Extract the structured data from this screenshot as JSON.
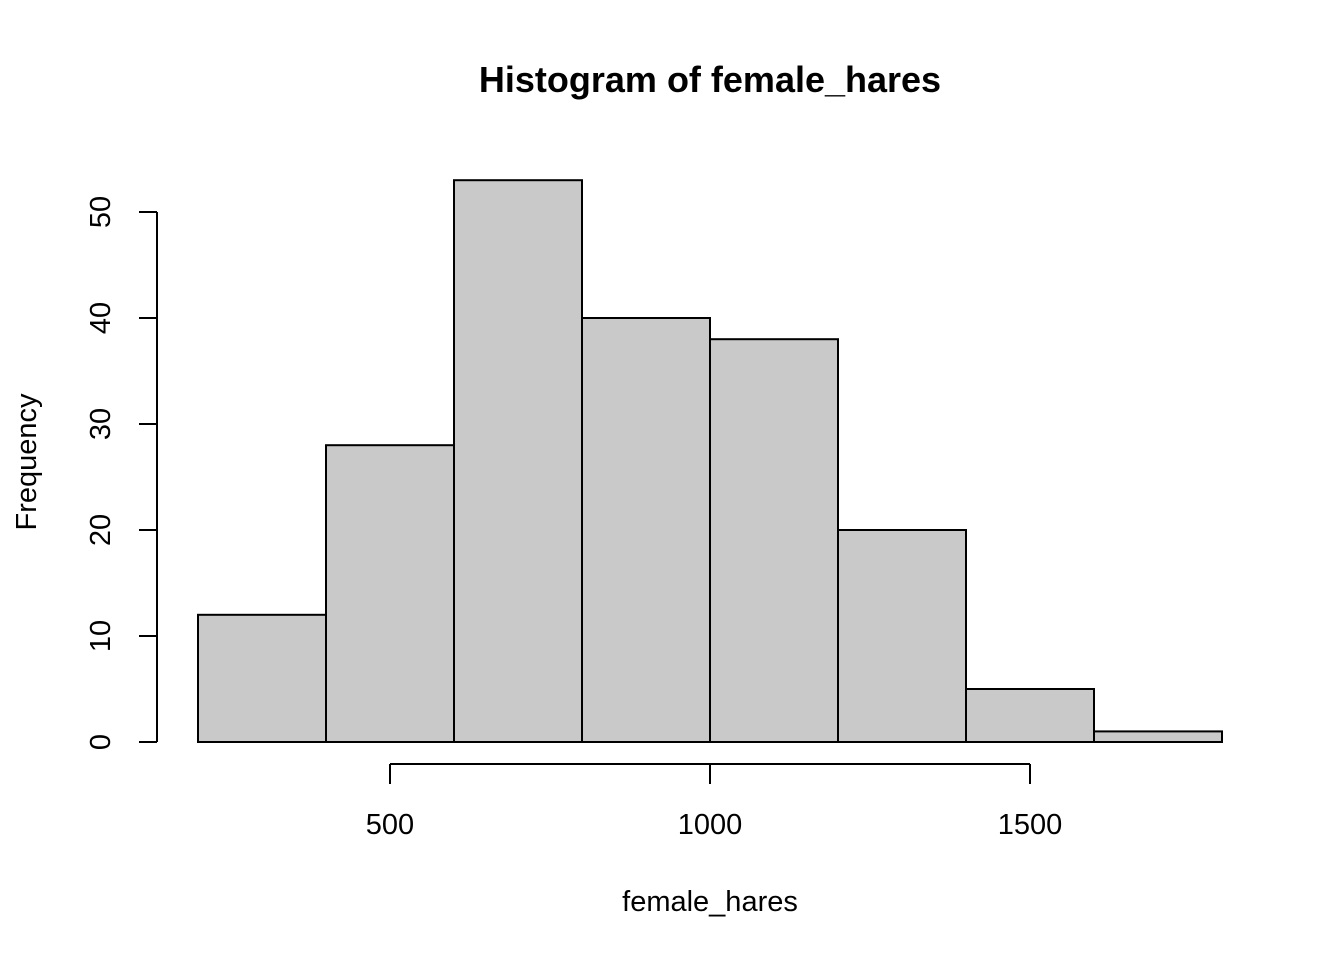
{
  "chart_data": {
    "type": "bar",
    "subtype": "histogram",
    "title": "Histogram of female_hares",
    "xlabel": "female_hares",
    "ylabel": "Frequency",
    "bins": [
      {
        "start": 200,
        "end": 400,
        "count": 12
      },
      {
        "start": 400,
        "end": 600,
        "count": 28
      },
      {
        "start": 600,
        "end": 800,
        "count": 53
      },
      {
        "start": 800,
        "end": 1000,
        "count": 40
      },
      {
        "start": 1000,
        "end": 1200,
        "count": 38
      },
      {
        "start": 1200,
        "end": 1400,
        "count": 20
      },
      {
        "start": 1400,
        "end": 1600,
        "count": 5
      },
      {
        "start": 1600,
        "end": 1800,
        "count": 1
      }
    ],
    "x_ticks": [
      500,
      1000,
      1500
    ],
    "x_tick_labels": [
      "500",
      "1000",
      "1500"
    ],
    "y_ticks": [
      0,
      10,
      20,
      30,
      40,
      50
    ],
    "y_tick_labels": [
      "0",
      "10",
      "20",
      "30",
      "40",
      "50"
    ],
    "xlim": [
      200,
      1800
    ],
    "ylim": [
      0,
      53
    ],
    "grid": false,
    "legend": "none",
    "colors": {
      "bar_fill": "#c9c9c9",
      "bar_stroke": "#000000",
      "axis": "#000000",
      "background": "#ffffff"
    }
  }
}
